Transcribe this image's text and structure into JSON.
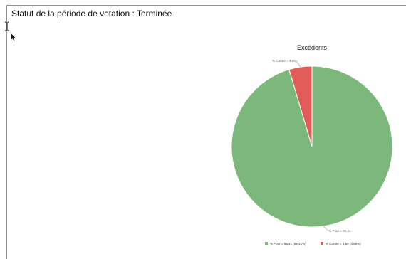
{
  "status": {
    "text": "Statut de la période de votation : Terminée"
  },
  "cursors": {
    "ibeam": "text-cursor-icon",
    "arrow": "mouse-pointer-icon"
  },
  "chart_data": {
    "type": "pie",
    "title": "Excédents",
    "slices": [
      {
        "name": "% Pour",
        "value": 95.41,
        "label": "% Pour = 95.41",
        "legend": "% Pour = 95,41 (95,41%)",
        "color": "#7cb77b"
      },
      {
        "name": "% Contre",
        "value": 4.59,
        "label": "% Contre = 4.59",
        "legend": "% Contre = 4,59 (4,59%)",
        "color": "#e25c5a"
      }
    ],
    "legend_position": "bottom"
  }
}
